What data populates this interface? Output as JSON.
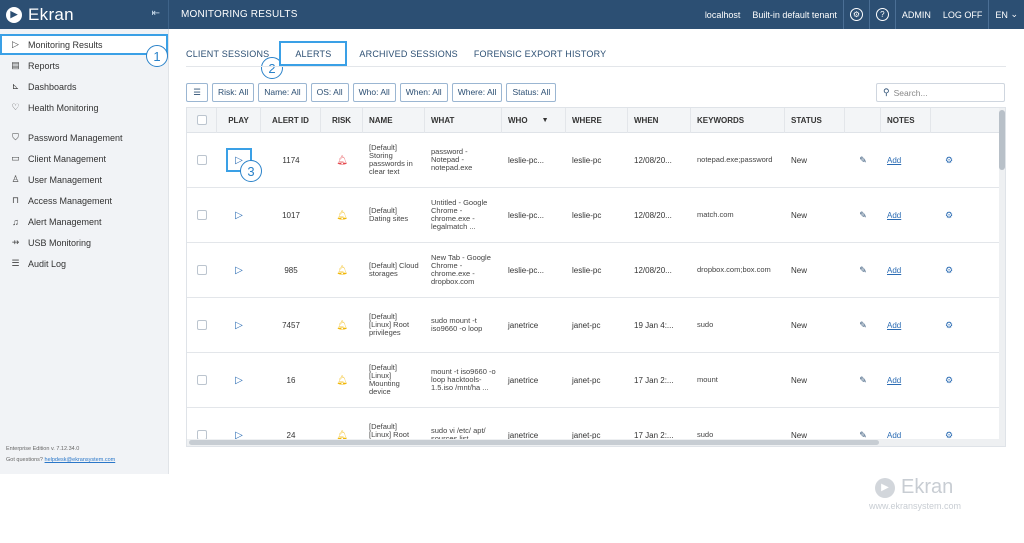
{
  "app": {
    "logo_text": "Ekran",
    "collapse_icon": "collapse-sidebar-icon",
    "page_header": "MONITORING RESULTS"
  },
  "topbar": {
    "server": "localhost",
    "tenant": "Built-in default tenant",
    "admin": "ADMIN",
    "logoff": "LOG OFF",
    "language": "EN"
  },
  "sidebar": {
    "items": [
      {
        "label": "Monitoring Results",
        "icon": "play-icon"
      },
      {
        "label": "Reports",
        "icon": "report-icon"
      },
      {
        "label": "Dashboards",
        "icon": "chart-icon"
      },
      {
        "label": "Health Monitoring",
        "icon": "heart-icon"
      },
      {
        "label": "Password Management",
        "icon": "shield-icon"
      },
      {
        "label": "Client Management",
        "icon": "monitor-icon"
      },
      {
        "label": "User Management",
        "icon": "user-icon"
      },
      {
        "label": "Access Management",
        "icon": "lock-icon"
      },
      {
        "label": "Alert Management",
        "icon": "bell-icon"
      },
      {
        "label": "USB Monitoring",
        "icon": "usb-icon"
      },
      {
        "label": "Audit Log",
        "icon": "list-icon"
      }
    ],
    "footer_edition": "Enterprise Edition v. 7.12.34.0",
    "footer_question": "Got questions?",
    "footer_email": "helpdesk@ekransystem.com"
  },
  "callouts": [
    "1",
    "2",
    "3"
  ],
  "tabs": [
    {
      "label": "CLIENT SESSIONS"
    },
    {
      "label": "ALERTS"
    },
    {
      "label": "ARCHIVED SESSIONS"
    },
    {
      "label": "FORENSIC EXPORT HISTORY"
    }
  ],
  "filters": [
    "Risk: All",
    "Name: All",
    "OS: All",
    "Who: All",
    "When: All",
    "Where: All",
    "Status: All"
  ],
  "search": {
    "placeholder": "Search..."
  },
  "table": {
    "headers": {
      "play": "PLAY",
      "alert_id": "ALERT ID",
      "risk": "RISK",
      "name": "NAME",
      "what": "WHAT",
      "who": "WHO",
      "where": "WHERE",
      "when": "WHEN",
      "keywords": "KEYWORDS",
      "status": "STATUS",
      "notes": "NOTES"
    },
    "rows": [
      {
        "id": "1174",
        "risk_color": "#e5484d",
        "name": "[Default] Storing passwords in clear text",
        "what": "password - Notepad - notepad.exe",
        "who": "leslie-pc...",
        "where": "leslie-pc",
        "when": "12/08/20...",
        "keywords": "notepad.exe;password",
        "status": "New",
        "notes": "Add"
      },
      {
        "id": "1017",
        "risk_color": "#f2b705",
        "name": "[Default] Dating sites",
        "what": "Untitled - Google Chrome - chrome.exe - legalmatch ...",
        "who": "leslie-pc...",
        "where": "leslie-pc",
        "when": "12/08/20...",
        "keywords": "match.com",
        "status": "New",
        "notes": "Add"
      },
      {
        "id": "985",
        "risk_color": "#f2b705",
        "name": "[Default] Cloud storages",
        "what": "New Tab - Google Chrome - chrome.exe - dropbox.com",
        "who": "leslie-pc...",
        "where": "leslie-pc",
        "when": "12/08/20...",
        "keywords": "dropbox.com;box.com",
        "status": "New",
        "notes": "Add"
      },
      {
        "id": "7457",
        "risk_color": "#f2b705",
        "name": "[Default] [Linux] Root privileges",
        "what": "sudo mount -t iso9660 -o loop",
        "who": "janetrice",
        "where": "janet-pc",
        "when": "19 Jan 4:...",
        "keywords": "sudo",
        "status": "New",
        "notes": "Add"
      },
      {
        "id": "16",
        "risk_color": "#f2b705",
        "name": "[Default] [Linux] Mounting device",
        "what": "mount -t iso9660 -o loop hacktools-1.5.iso /mnt/ha ...",
        "who": "janetrice",
        "where": "janet-pc",
        "when": "17 Jan 2:...",
        "keywords": "mount",
        "status": "New",
        "notes": "Add"
      },
      {
        "id": "24",
        "risk_color": "#f2b705",
        "name": "[Default] [Linux] Root privileges",
        "what": "sudo vi /etc/ apt/ sources.list",
        "who": "janetrice",
        "where": "janet-pc",
        "when": "17 Jan 2:...",
        "keywords": "sudo",
        "status": "New",
        "notes": "Add"
      }
    ]
  },
  "watermark": {
    "logo": "Ekran",
    "url": "www.ekransystem.com"
  }
}
